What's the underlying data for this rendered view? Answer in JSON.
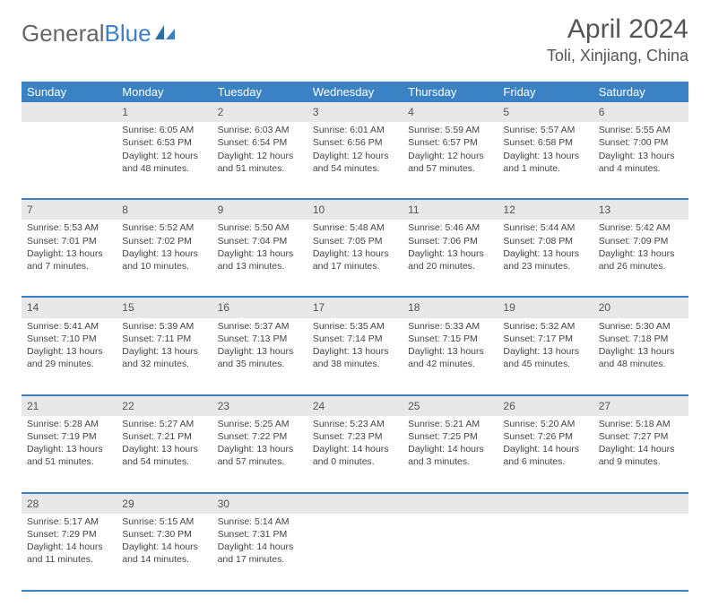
{
  "brand": {
    "part1": "General",
    "part2": "Blue"
  },
  "header": {
    "month_title": "April 2024",
    "location": "Toli, Xinjiang, China"
  },
  "colors": {
    "accent": "#3b82c4",
    "daynum_bg": "#e8e8e8",
    "text": "#444444"
  },
  "day_headers": [
    "Sunday",
    "Monday",
    "Tuesday",
    "Wednesday",
    "Thursday",
    "Friday",
    "Saturday"
  ],
  "weeks": [
    {
      "nums": [
        "",
        "1",
        "2",
        "3",
        "4",
        "5",
        "6"
      ],
      "cells": [
        null,
        {
          "sunrise": "Sunrise: 6:05 AM",
          "sunset": "Sunset: 6:53 PM",
          "day1": "Daylight: 12 hours",
          "day2": "and 48 minutes."
        },
        {
          "sunrise": "Sunrise: 6:03 AM",
          "sunset": "Sunset: 6:54 PM",
          "day1": "Daylight: 12 hours",
          "day2": "and 51 minutes."
        },
        {
          "sunrise": "Sunrise: 6:01 AM",
          "sunset": "Sunset: 6:56 PM",
          "day1": "Daylight: 12 hours",
          "day2": "and 54 minutes."
        },
        {
          "sunrise": "Sunrise: 5:59 AM",
          "sunset": "Sunset: 6:57 PM",
          "day1": "Daylight: 12 hours",
          "day2": "and 57 minutes."
        },
        {
          "sunrise": "Sunrise: 5:57 AM",
          "sunset": "Sunset: 6:58 PM",
          "day1": "Daylight: 13 hours",
          "day2": "and 1 minute."
        },
        {
          "sunrise": "Sunrise: 5:55 AM",
          "sunset": "Sunset: 7:00 PM",
          "day1": "Daylight: 13 hours",
          "day2": "and 4 minutes."
        }
      ]
    },
    {
      "nums": [
        "7",
        "8",
        "9",
        "10",
        "11",
        "12",
        "13"
      ],
      "cells": [
        {
          "sunrise": "Sunrise: 5:53 AM",
          "sunset": "Sunset: 7:01 PM",
          "day1": "Daylight: 13 hours",
          "day2": "and 7 minutes."
        },
        {
          "sunrise": "Sunrise: 5:52 AM",
          "sunset": "Sunset: 7:02 PM",
          "day1": "Daylight: 13 hours",
          "day2": "and 10 minutes."
        },
        {
          "sunrise": "Sunrise: 5:50 AM",
          "sunset": "Sunset: 7:04 PM",
          "day1": "Daylight: 13 hours",
          "day2": "and 13 minutes."
        },
        {
          "sunrise": "Sunrise: 5:48 AM",
          "sunset": "Sunset: 7:05 PM",
          "day1": "Daylight: 13 hours",
          "day2": "and 17 minutes."
        },
        {
          "sunrise": "Sunrise: 5:46 AM",
          "sunset": "Sunset: 7:06 PM",
          "day1": "Daylight: 13 hours",
          "day2": "and 20 minutes."
        },
        {
          "sunrise": "Sunrise: 5:44 AM",
          "sunset": "Sunset: 7:08 PM",
          "day1": "Daylight: 13 hours",
          "day2": "and 23 minutes."
        },
        {
          "sunrise": "Sunrise: 5:42 AM",
          "sunset": "Sunset: 7:09 PM",
          "day1": "Daylight: 13 hours",
          "day2": "and 26 minutes."
        }
      ]
    },
    {
      "nums": [
        "14",
        "15",
        "16",
        "17",
        "18",
        "19",
        "20"
      ],
      "cells": [
        {
          "sunrise": "Sunrise: 5:41 AM",
          "sunset": "Sunset: 7:10 PM",
          "day1": "Daylight: 13 hours",
          "day2": "and 29 minutes."
        },
        {
          "sunrise": "Sunrise: 5:39 AM",
          "sunset": "Sunset: 7:11 PM",
          "day1": "Daylight: 13 hours",
          "day2": "and 32 minutes."
        },
        {
          "sunrise": "Sunrise: 5:37 AM",
          "sunset": "Sunset: 7:13 PM",
          "day1": "Daylight: 13 hours",
          "day2": "and 35 minutes."
        },
        {
          "sunrise": "Sunrise: 5:35 AM",
          "sunset": "Sunset: 7:14 PM",
          "day1": "Daylight: 13 hours",
          "day2": "and 38 minutes."
        },
        {
          "sunrise": "Sunrise: 5:33 AM",
          "sunset": "Sunset: 7:15 PM",
          "day1": "Daylight: 13 hours",
          "day2": "and 42 minutes."
        },
        {
          "sunrise": "Sunrise: 5:32 AM",
          "sunset": "Sunset: 7:17 PM",
          "day1": "Daylight: 13 hours",
          "day2": "and 45 minutes."
        },
        {
          "sunrise": "Sunrise: 5:30 AM",
          "sunset": "Sunset: 7:18 PM",
          "day1": "Daylight: 13 hours",
          "day2": "and 48 minutes."
        }
      ]
    },
    {
      "nums": [
        "21",
        "22",
        "23",
        "24",
        "25",
        "26",
        "27"
      ],
      "cells": [
        {
          "sunrise": "Sunrise: 5:28 AM",
          "sunset": "Sunset: 7:19 PM",
          "day1": "Daylight: 13 hours",
          "day2": "and 51 minutes."
        },
        {
          "sunrise": "Sunrise: 5:27 AM",
          "sunset": "Sunset: 7:21 PM",
          "day1": "Daylight: 13 hours",
          "day2": "and 54 minutes."
        },
        {
          "sunrise": "Sunrise: 5:25 AM",
          "sunset": "Sunset: 7:22 PM",
          "day1": "Daylight: 13 hours",
          "day2": "and 57 minutes."
        },
        {
          "sunrise": "Sunrise: 5:23 AM",
          "sunset": "Sunset: 7:23 PM",
          "day1": "Daylight: 14 hours",
          "day2": "and 0 minutes."
        },
        {
          "sunrise": "Sunrise: 5:21 AM",
          "sunset": "Sunset: 7:25 PM",
          "day1": "Daylight: 14 hours",
          "day2": "and 3 minutes."
        },
        {
          "sunrise": "Sunrise: 5:20 AM",
          "sunset": "Sunset: 7:26 PM",
          "day1": "Daylight: 14 hours",
          "day2": "and 6 minutes."
        },
        {
          "sunrise": "Sunrise: 5:18 AM",
          "sunset": "Sunset: 7:27 PM",
          "day1": "Daylight: 14 hours",
          "day2": "and 9 minutes."
        }
      ]
    },
    {
      "nums": [
        "28",
        "29",
        "30",
        "",
        "",
        "",
        ""
      ],
      "cells": [
        {
          "sunrise": "Sunrise: 5:17 AM",
          "sunset": "Sunset: 7:29 PM",
          "day1": "Daylight: 14 hours",
          "day2": "and 11 minutes."
        },
        {
          "sunrise": "Sunrise: 5:15 AM",
          "sunset": "Sunset: 7:30 PM",
          "day1": "Daylight: 14 hours",
          "day2": "and 14 minutes."
        },
        {
          "sunrise": "Sunrise: 5:14 AM",
          "sunset": "Sunset: 7:31 PM",
          "day1": "Daylight: 14 hours",
          "day2": "and 17 minutes."
        },
        null,
        null,
        null,
        null
      ]
    }
  ]
}
